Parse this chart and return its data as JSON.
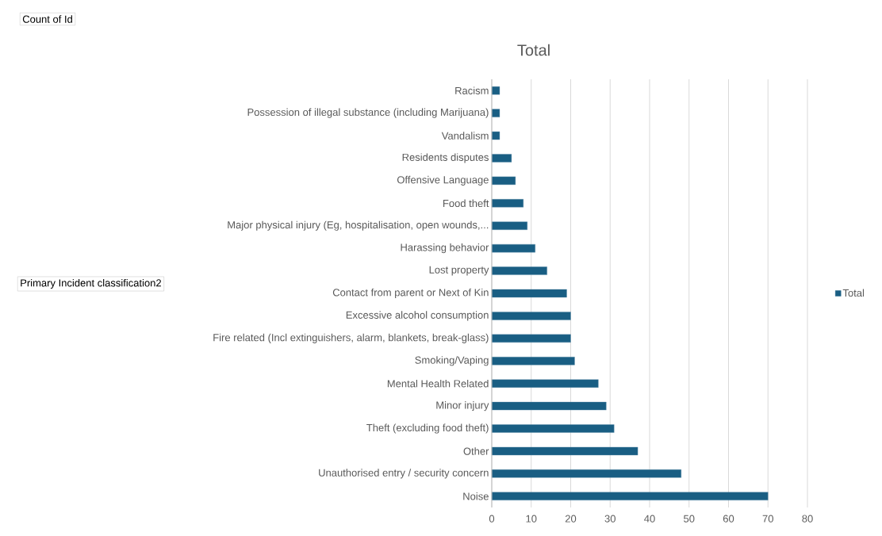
{
  "chart_data": {
    "type": "bar",
    "orientation": "horizontal",
    "title": "Total",
    "annotations": [
      "Count of Id",
      "Primary Incident classification2"
    ],
    "categories": [
      "Racism",
      "Possession of illegal substance (including Marijuana)",
      "Vandalism",
      "Residents disputes",
      "Offensive Language",
      "Food theft",
      "Major physical injury (Eg, hospitalisation, open wounds,...",
      "Harassing behavior",
      "Lost property",
      "Contact from parent or Next of Kin",
      "Excessive alcohol consumption",
      "Fire related (Incl extinguishers, alarm, blankets, break-glass)",
      "Smoking/Vaping",
      "Mental Health Related",
      "Minor injury",
      "Theft (excluding food theft)",
      "Other",
      "Unauthorised entry / security concern",
      "Noise"
    ],
    "series": [
      {
        "name": "Total",
        "color": "#195e83",
        "values": [
          2,
          2,
          2,
          5,
          6,
          8,
          9,
          11,
          14,
          19,
          20,
          20,
          21,
          27,
          29,
          31,
          37,
          48,
          70
        ]
      }
    ],
    "xlim": [
      0,
      80
    ],
    "xticks": [
      0,
      10,
      20,
      30,
      40,
      50,
      60,
      70,
      80
    ],
    "grid": "x",
    "legend": "right"
  }
}
